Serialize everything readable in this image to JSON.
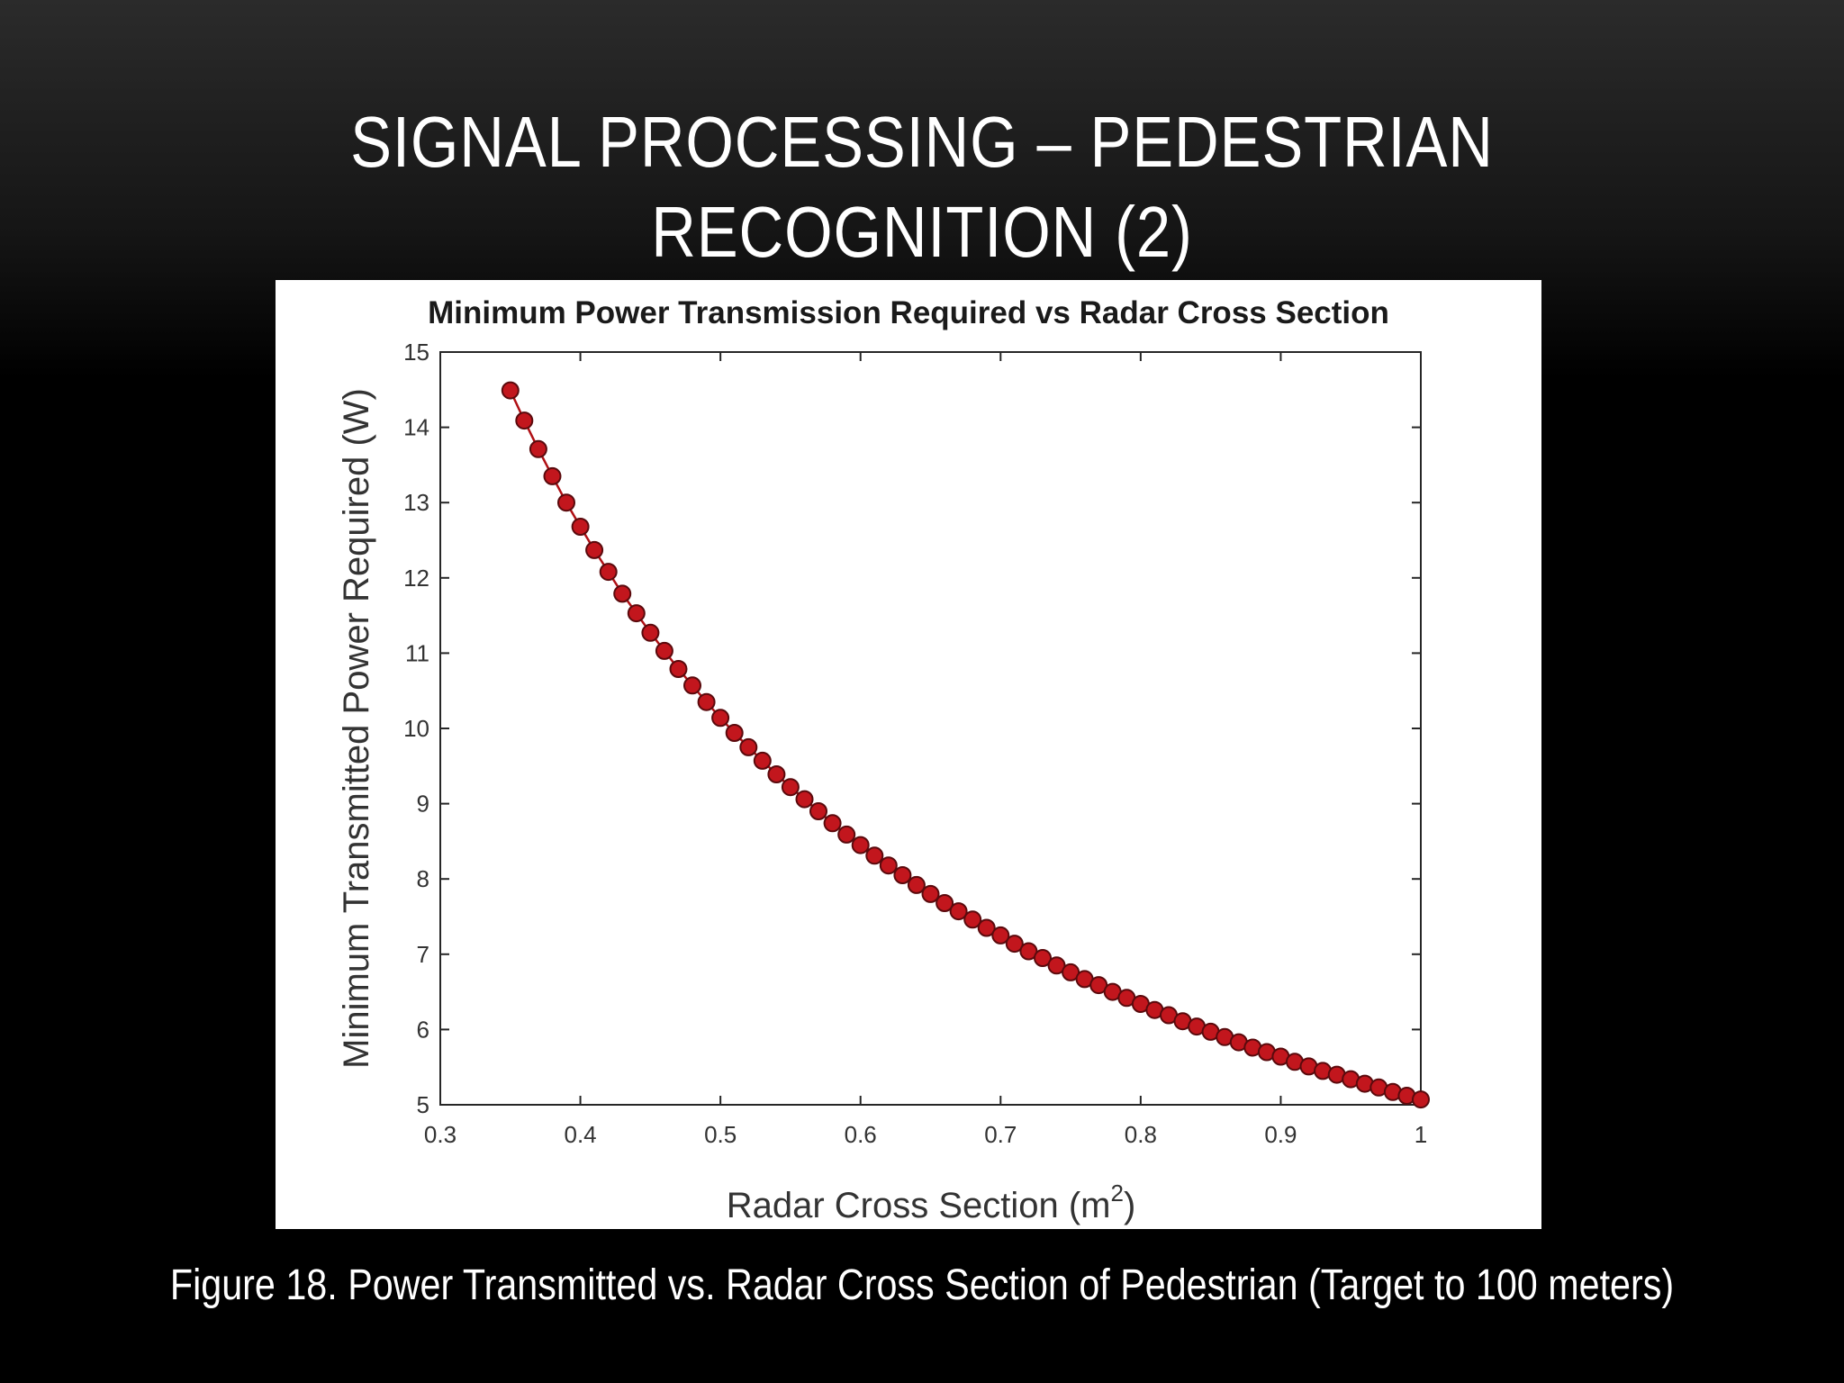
{
  "slide": {
    "title_line1": "SIGNAL PROCESSING – PEDESTRIAN",
    "title_line2": "RECOGNITION (2)",
    "caption": "Figure 18. Power Transmitted vs. Radar Cross Section of Pedestrian (Target to 100 meters)"
  },
  "colors": {
    "background": "#000000",
    "marker_fill": "#c2161d",
    "marker_edge": "#5a0a0d"
  },
  "chart_data": {
    "type": "scatter",
    "title": "Minimum Power Transmission Required vs Radar Cross Section",
    "xlabel": "Radar Cross Section (m",
    "xlabel_superscript": "2",
    "xlabel_suffix": ")",
    "ylabel": "Minimum Transmitted Power Required (W)",
    "xlim": [
      0.3,
      1
    ],
    "ylim": [
      5,
      15
    ],
    "xticks": [
      0.3,
      0.4,
      0.5,
      0.6,
      0.7,
      0.8,
      0.9,
      1
    ],
    "xtick_labels": [
      "0.3",
      "0.4",
      "0.5",
      "0.6",
      "0.7",
      "0.8",
      "0.9",
      "1"
    ],
    "yticks": [
      5,
      6,
      7,
      8,
      9,
      10,
      11,
      12,
      13,
      14,
      15
    ],
    "ytick_labels": [
      "5",
      "6",
      "7",
      "8",
      "9",
      "10",
      "11",
      "12",
      "13",
      "14",
      "15"
    ],
    "grid": false,
    "connected": true,
    "series": [
      {
        "x": [
          0.35,
          0.36,
          0.37,
          0.38,
          0.39,
          0.4,
          0.41,
          0.42,
          0.43,
          0.44,
          0.45,
          0.46,
          0.47,
          0.48,
          0.49,
          0.5,
          0.51,
          0.52,
          0.53,
          0.54,
          0.55,
          0.56,
          0.57,
          0.58,
          0.59,
          0.6,
          0.61,
          0.62,
          0.63,
          0.64,
          0.65,
          0.66,
          0.67,
          0.68,
          0.69,
          0.7,
          0.71,
          0.72,
          0.73,
          0.74,
          0.75,
          0.76,
          0.77,
          0.78,
          0.79,
          0.8,
          0.81,
          0.82,
          0.83,
          0.84,
          0.85,
          0.86,
          0.87,
          0.88,
          0.89,
          0.9,
          0.91,
          0.92,
          0.93,
          0.94,
          0.95,
          0.96,
          0.97,
          0.98,
          0.99,
          1.0
        ],
        "y": [
          14.49,
          14.09,
          13.71,
          13.35,
          13.0,
          12.68,
          12.37,
          12.08,
          11.79,
          11.53,
          11.27,
          11.03,
          10.79,
          10.57,
          10.35,
          10.14,
          9.94,
          9.75,
          9.57,
          9.39,
          9.22,
          9.06,
          8.9,
          8.74,
          8.59,
          8.45,
          8.31,
          8.18,
          8.05,
          7.92,
          7.8,
          7.68,
          7.57,
          7.46,
          7.35,
          7.25,
          7.14,
          7.04,
          6.95,
          6.85,
          6.76,
          6.67,
          6.59,
          6.5,
          6.42,
          6.34,
          6.26,
          6.19,
          6.11,
          6.04,
          5.97,
          5.9,
          5.83,
          5.76,
          5.7,
          5.64,
          5.57,
          5.51,
          5.45,
          5.4,
          5.34,
          5.28,
          5.23,
          5.17,
          5.12,
          5.07
        ]
      }
    ]
  }
}
